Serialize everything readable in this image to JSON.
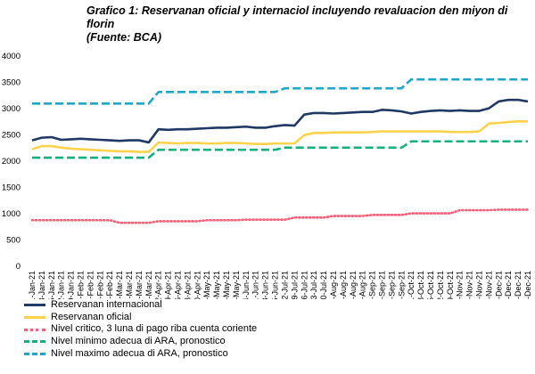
{
  "chart_data": {
    "type": "line",
    "title_line1": "Grafico 1: Reservanan oficial y internaciol incluyendo revaluacion den miyon di florin",
    "title_line2": "(Fuente: BCA)",
    "xlabel": "",
    "ylabel": "",
    "ylim": [
      0,
      4000
    ],
    "y_ticks": [
      "0",
      "500",
      "1000",
      "1500",
      "2000",
      "2500",
      "3000",
      "3500",
      "4000"
    ],
    "grid": false,
    "legend_position": "bottom",
    "x": [
      "1-Jan-21",
      "8-Jan-21",
      "15-Jan-21",
      "22-Jan-21",
      "29-Jan-21",
      "5-Feb-21",
      "12-Feb-21",
      "19-Feb-21",
      "26-Feb-21",
      "5-Mar-21",
      "12-Mar-21",
      "19-Mar-21",
      "26-Mar-21",
      "2-Apr-21",
      "9-Apr-21",
      "16-Apr-21",
      "23-Apr-21",
      "30-Apr-21",
      "7-May-21",
      "14-May-21",
      "21-May-21",
      "28-May-21",
      "4-Jun-21",
      "11-Jun-21",
      "18-Jun-21",
      "25-Jun-21",
      "2-Jul-21",
      "9-Jul-21",
      "16-Jul-21",
      "23-Jul-21",
      "30-Jul-21",
      "6-Aug-21",
      "13-Aug-21",
      "20-Aug-21",
      "27-Aug-21",
      "3-Sep-21",
      "10-Sep-21",
      "17-Sep-21",
      "24-Sep-21",
      "1-Oct-21",
      "8-Oct-21",
      "15-Oct-21",
      "22-Oct-21",
      "29-Oct-21",
      "5-Nov-21",
      "12-Nov-21",
      "19-Nov-21",
      "26-Nov-21",
      "3-Dec-21",
      "10-Dec-21",
      "17-Dec-21",
      "24-Dec-21"
    ],
    "series": [
      {
        "name": "Reservanan internacional",
        "color": "#1f3864",
        "dash": "solid",
        "values": [
          2380,
          2430,
          2440,
          2390,
          2400,
          2410,
          2400,
          2390,
          2380,
          2370,
          2380,
          2380,
          2340,
          2590,
          2580,
          2590,
          2590,
          2600,
          2610,
          2620,
          2620,
          2630,
          2640,
          2620,
          2620,
          2650,
          2670,
          2660,
          2870,
          2900,
          2900,
          2890,
          2900,
          2910,
          2920,
          2920,
          2960,
          2950,
          2930,
          2890,
          2920,
          2940,
          2950,
          2940,
          2950,
          2940,
          2940,
          2990,
          3120,
          3150,
          3150,
          3120
        ]
      },
      {
        "name": "Reservanan oficial",
        "color": "#ffd24d",
        "dash": "solid",
        "values": [
          2210,
          2270,
          2270,
          2240,
          2220,
          2210,
          2200,
          2190,
          2180,
          2170,
          2170,
          2160,
          2160,
          2340,
          2330,
          2320,
          2330,
          2330,
          2320,
          2320,
          2330,
          2330,
          2320,
          2310,
          2310,
          2320,
          2320,
          2320,
          2480,
          2520,
          2520,
          2530,
          2530,
          2530,
          2530,
          2540,
          2550,
          2550,
          2550,
          2550,
          2550,
          2550,
          2550,
          2540,
          2540,
          2540,
          2550,
          2700,
          2710,
          2730,
          2740,
          2740
        ]
      },
      {
        "name": "Nivel critico, 3 luna di pago riba cuenta coriente",
        "color": "#ff5b77",
        "dash": "dotted",
        "values": [
          860,
          860,
          860,
          860,
          860,
          860,
          860,
          860,
          860,
          810,
          810,
          810,
          810,
          840,
          840,
          840,
          840,
          840,
          860,
          860,
          860,
          860,
          870,
          870,
          870,
          870,
          870,
          910,
          910,
          910,
          910,
          940,
          940,
          940,
          940,
          960,
          960,
          960,
          960,
          990,
          990,
          990,
          990,
          990,
          1050,
          1050,
          1050,
          1050,
          1060,
          1060,
          1060,
          1060
        ]
      },
      {
        "name": "Nivel minimo adecua di ARA, pronostico",
        "color": "#12b07a",
        "dash": "dashed",
        "values": [
          2050,
          2050,
          2050,
          2050,
          2050,
          2050,
          2050,
          2050,
          2050,
          2050,
          2050,
          2050,
          2050,
          2200,
          2200,
          2200,
          2200,
          2200,
          2200,
          2200,
          2200,
          2200,
          2200,
          2200,
          2200,
          2200,
          2240,
          2240,
          2240,
          2240,
          2240,
          2240,
          2240,
          2240,
          2240,
          2240,
          2240,
          2240,
          2240,
          2360,
          2360,
          2360,
          2360,
          2360,
          2360,
          2360,
          2360,
          2360,
          2360,
          2360,
          2360,
          2360
        ]
      },
      {
        "name": "Nivel maximo adecua di ARA, pronostico",
        "color": "#1ea7c8",
        "dash": "dashed",
        "values": [
          3080,
          3080,
          3080,
          3080,
          3080,
          3080,
          3080,
          3080,
          3080,
          3080,
          3080,
          3080,
          3080,
          3300,
          3300,
          3300,
          3300,
          3300,
          3300,
          3300,
          3300,
          3300,
          3300,
          3300,
          3300,
          3300,
          3370,
          3370,
          3370,
          3370,
          3370,
          3370,
          3370,
          3370,
          3370,
          3370,
          3370,
          3370,
          3370,
          3540,
          3540,
          3540,
          3540,
          3540,
          3540,
          3540,
          3540,
          3540,
          3540,
          3540,
          3540,
          3540
        ]
      }
    ]
  }
}
